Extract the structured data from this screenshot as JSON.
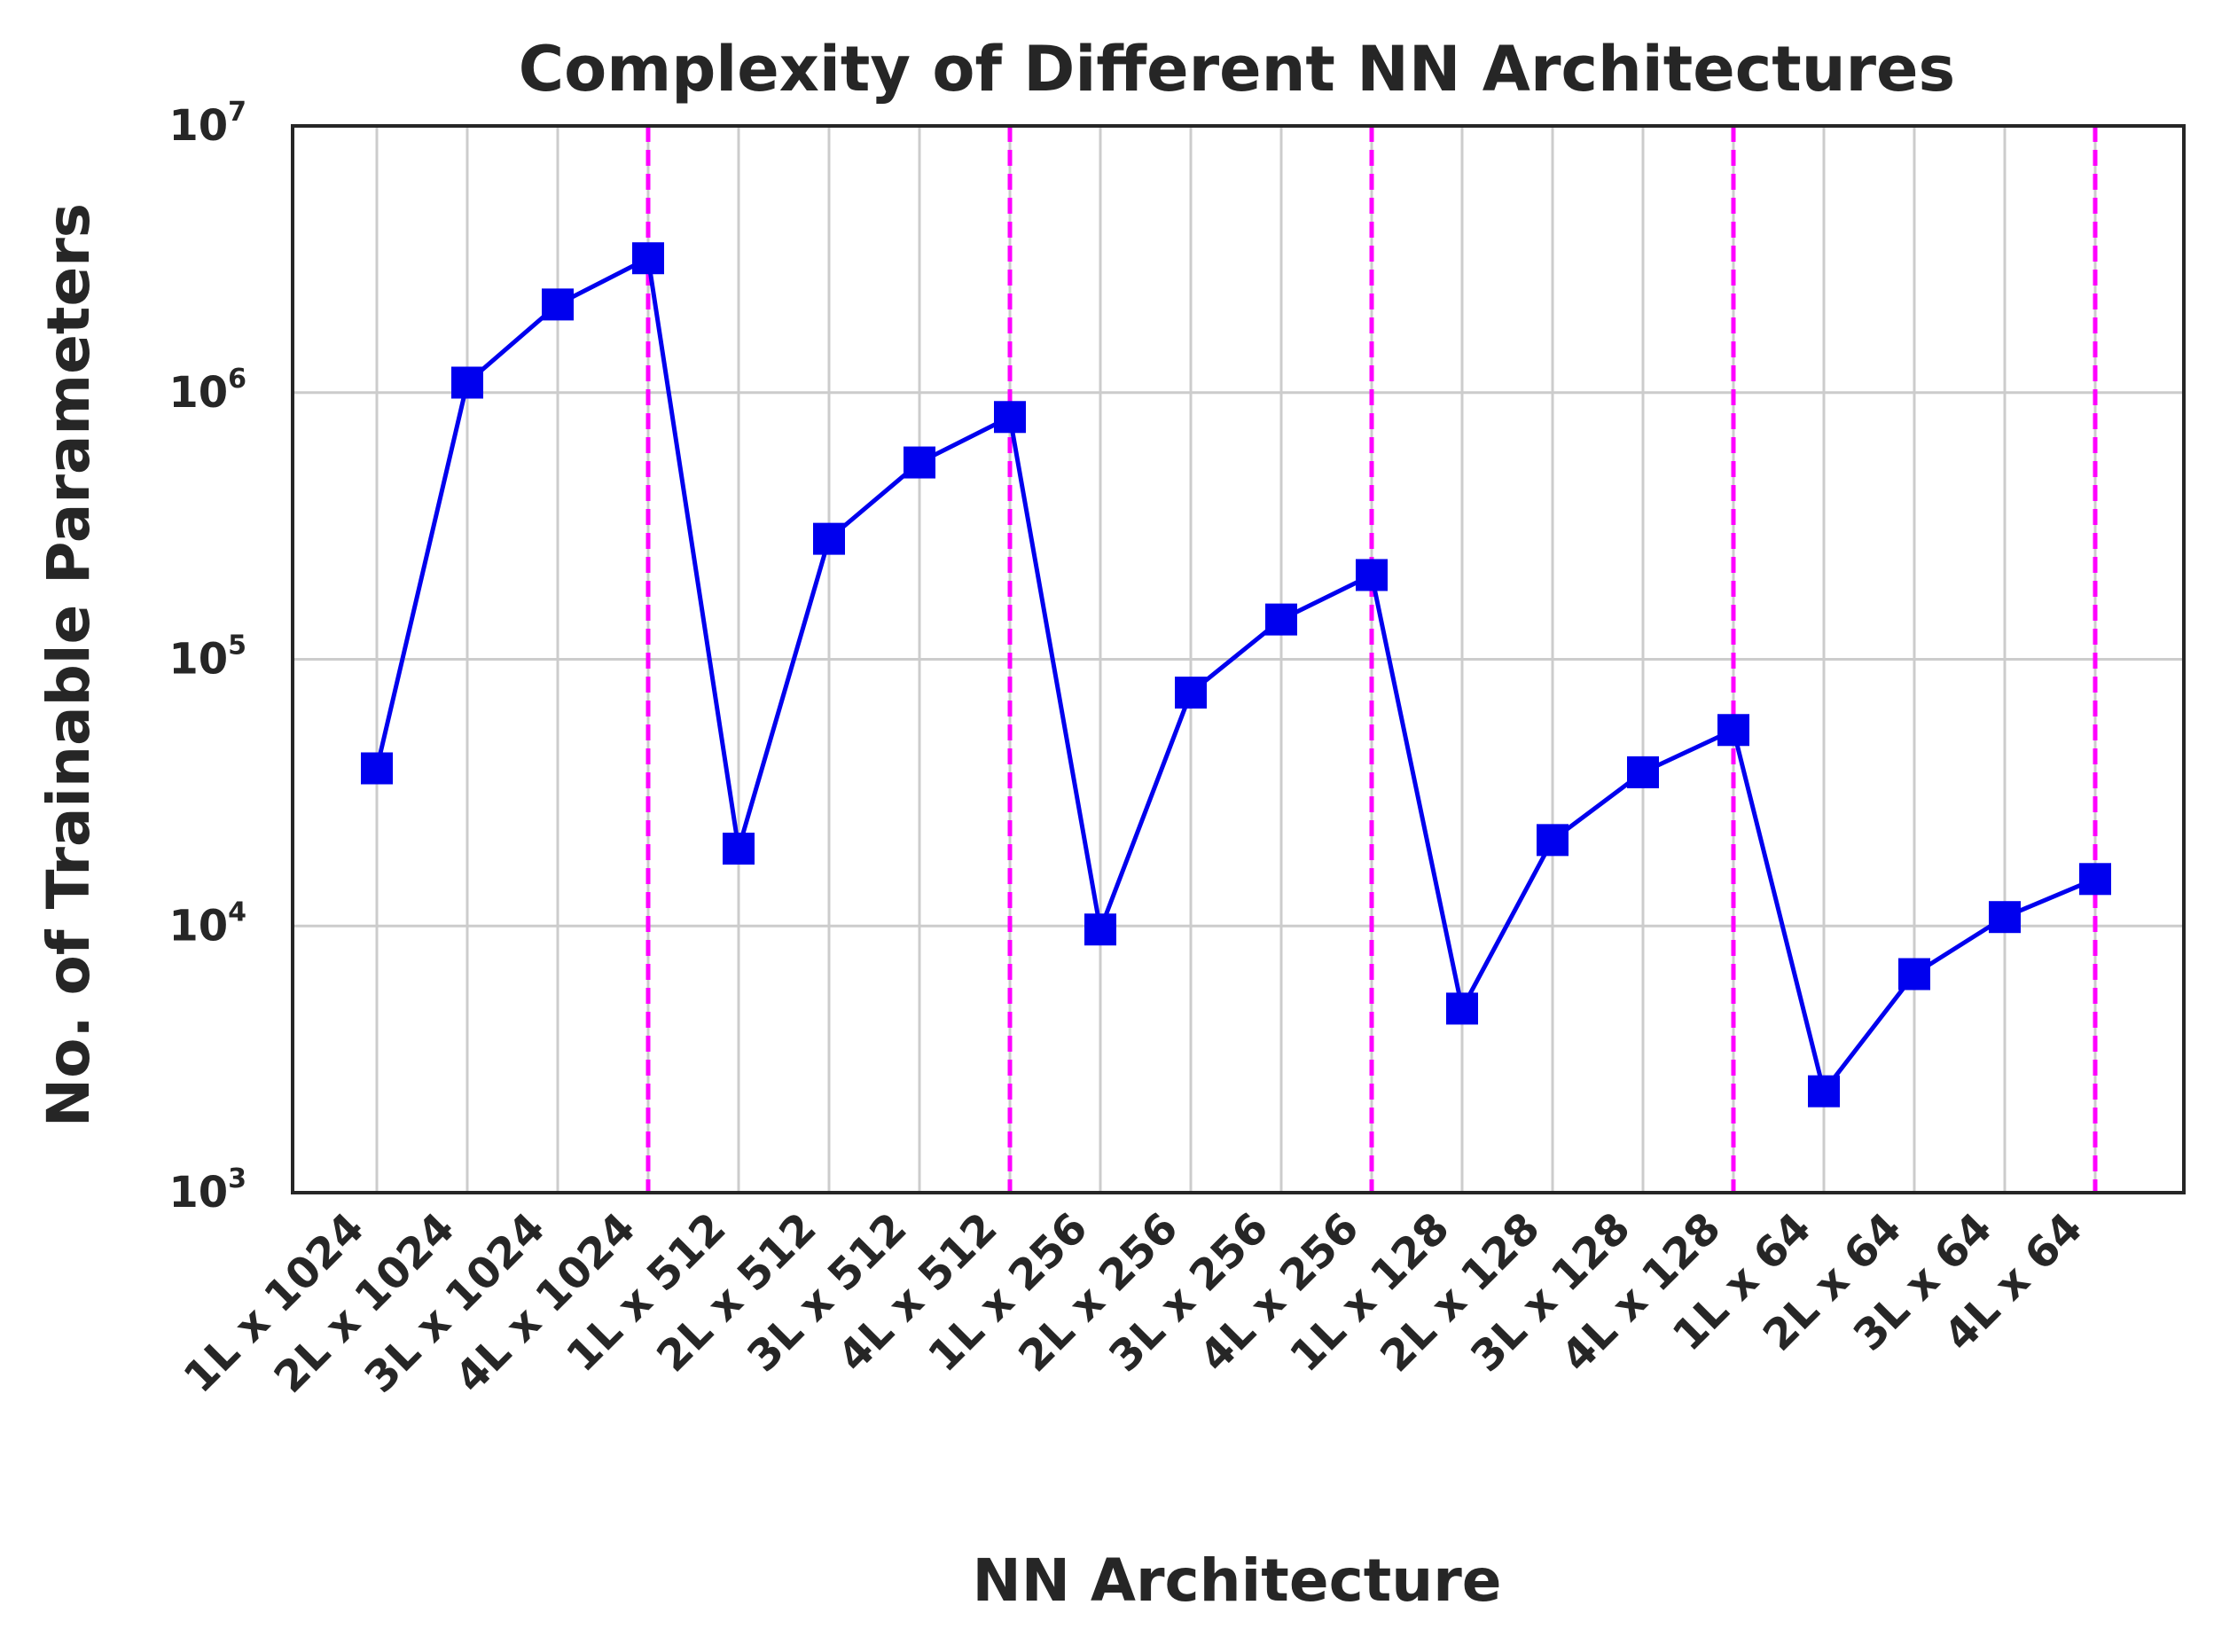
{
  "chart_data": {
    "type": "line",
    "title": "Complexity of Different NN Architectures",
    "xlabel": "NN Architecture",
    "ylabel": "No. of Trainable Parameters",
    "yscale": "log",
    "ylim": [
      1000,
      10000000
    ],
    "y_ticks": [
      {
        "base": "10",
        "exp": "3",
        "value": 1000
      },
      {
        "base": "10",
        "exp": "4",
        "value": 10000
      },
      {
        "base": "10",
        "exp": "5",
        "value": 100000
      },
      {
        "base": "10",
        "exp": "6",
        "value": 1000000
      },
      {
        "base": "10",
        "exp": "7",
        "value": 10000000
      }
    ],
    "categories": [
      "1L x 1024",
      "2L x 1024",
      "3L x 1024",
      "4L x 1024",
      "1L x 512",
      "2L x 512",
      "3L x 512",
      "4L x 512",
      "1L x 256",
      "2L x 256",
      "3L x 256",
      "4L x 256",
      "1L x 128",
      "2L x 128",
      "3L x 128",
      "4L x 128",
      "1L x 64",
      "2L x 64",
      "3L x 64",
      "4L x 64"
    ],
    "series": [
      {
        "values": [
          39000,
          1090000,
          2140000,
          3190000,
          19500,
          283000,
          547000,
          810000,
          9700,
          75000,
          141000,
          207000,
          4900,
          21000,
          37700,
          54300,
          2400,
          6600,
          10800,
          15000
        ],
        "color": "#0000ee",
        "marker": "square"
      }
    ],
    "vlines_at": [
      "4L x 1024",
      "4L x 512",
      "4L x 256",
      "4L x 128",
      "4L x 64"
    ],
    "vline_color": "#ff00ff",
    "vline_style": "dashed",
    "grid": true,
    "legend": false
  }
}
